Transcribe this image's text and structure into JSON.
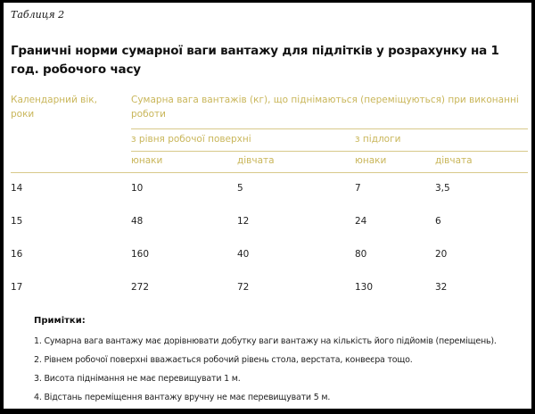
{
  "caption": "Таблиця 2",
  "title": "Граничні норми сумарної ваги вантажу для підлітків у розрахунку на 1 год. робочого часу",
  "table": {
    "col_age": "Календарний вік, роки",
    "col_weight": "Сумарна вага вантажів (кг), що піднімаються (переміщуються) при виконанні роботи",
    "group_surface": "з рівня робочої поверхні",
    "group_floor": "з підлоги",
    "boys": "юнаки",
    "girls": "дівчата",
    "rows": [
      [
        "14",
        "10",
        "5",
        "7",
        "3,5"
      ],
      [
        "15",
        "48",
        "12",
        "24",
        "6"
      ],
      [
        "16",
        "160",
        "40",
        "80",
        "20"
      ],
      [
        "17",
        "272",
        "72",
        "130",
        "32"
      ]
    ]
  },
  "notes": {
    "heading": "Примітки:",
    "items": [
      "1. Сумарна вага вантажу має дорівнювати добутку ваги вантажу на кількість його підйомів (переміщень).",
      "2. Рівнем робочої поверхні вважається робочий рівень стола, верстата, конвеєра тощо.",
      "3. Висота піднімання не має перевищувати 1 м.",
      "4. Відстань переміщення вантажу вручну не має перевищувати 5 м."
    ]
  }
}
